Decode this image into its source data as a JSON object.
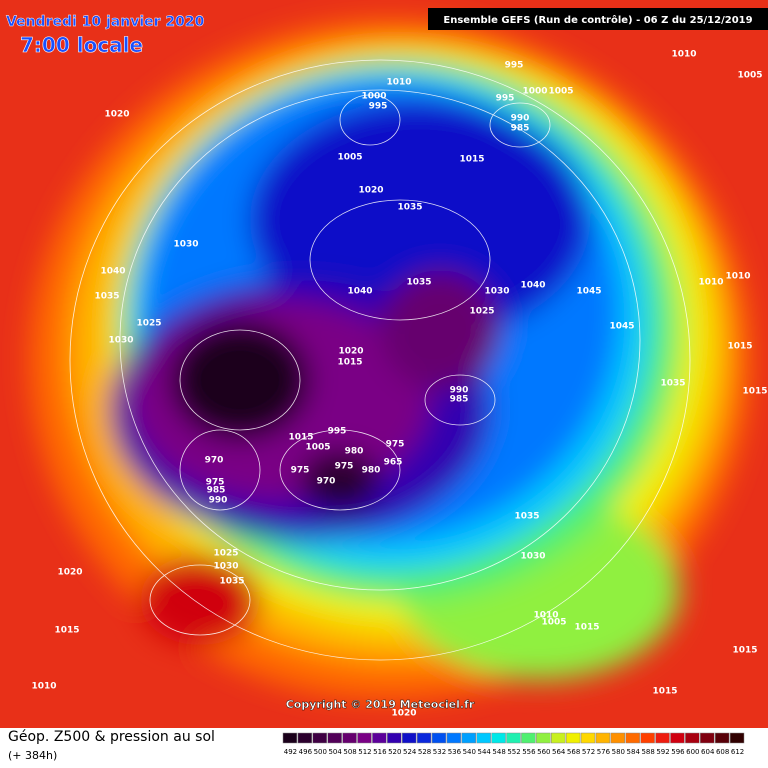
{
  "header": {
    "date": "Vendredi 10 janvier 2020",
    "time": "7:00 locale",
    "run": "Ensemble GEFS  (Run de contrôle)  -  06 Z du 25/12/2019"
  },
  "copyright": "Copyright © 2019 Meteociel.fr",
  "footer": {
    "title": "Géop. Z500 & pression au sol",
    "lead": "(+ 384h)"
  },
  "scale": {
    "labels": [
      492,
      496,
      500,
      504,
      508,
      512,
      516,
      520,
      524,
      528,
      532,
      536,
      540,
      544,
      548,
      552,
      556,
      560,
      564,
      568,
      572,
      576,
      580,
      584,
      588,
      592,
      596,
      600,
      604,
      608,
      612
    ],
    "colors": [
      "#1a001a",
      "#2c002e",
      "#3f0043",
      "#520058",
      "#66006e",
      "#7a0085",
      "#5c009a",
      "#3300b0",
      "#1010c8",
      "#0a28dc",
      "#0050f0",
      "#0078ff",
      "#00a0ff",
      "#00c8ff",
      "#00e8e8",
      "#20f0b0",
      "#50f070",
      "#90f040",
      "#c8f020",
      "#f0f000",
      "#ffd800",
      "#ffb400",
      "#ff9000",
      "#ff6a00",
      "#ff4000",
      "#ee1c10",
      "#d00010",
      "#a80010",
      "#800010",
      "#580008",
      "#300000"
    ]
  },
  "isobar_labels": [
    "1010",
    "1005",
    "995",
    "1010",
    "1000",
    "995",
    "995",
    "1000",
    "1005",
    "990",
    "985",
    "1020",
    "1005",
    "1015",
    "1020",
    "1035",
    "1030",
    "1040",
    "1035",
    "1040",
    "1035",
    "1030",
    "1040",
    "1045",
    "1010",
    "1010",
    "1025",
    "1025",
    "1030",
    "1045",
    "1020",
    "1015",
    "1015",
    "1035",
    "1015",
    "990",
    "985",
    "1015",
    "995",
    "1005",
    "980",
    "975",
    "970",
    "975",
    "975",
    "980",
    "965",
    "970",
    "975",
    "985",
    "990",
    "1035",
    "1030",
    "1025",
    "1030",
    "1035",
    "1020",
    "1010",
    "1005",
    "1015",
    "1015",
    "1015",
    "1010",
    "1015",
    "1020"
  ]
}
